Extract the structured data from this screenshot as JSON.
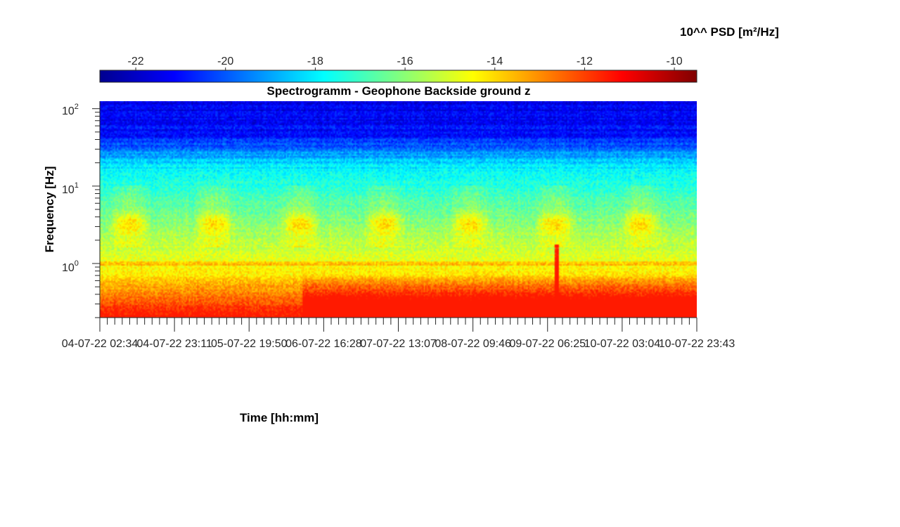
{
  "chart_data": {
    "type": "heatmap",
    "title": "Spectrogramm - Geophone Backside ground z",
    "xlabel": "Time [hh:mm]",
    "ylabel": "Frequency [Hz]",
    "x_tick_labels": [
      "04-07-22 02:34",
      "04-07-22 23:11",
      "05-07-22 19:50",
      "06-07-22 16:28",
      "07-07-22 13:07",
      "08-07-22 09:46",
      "09-07-22 06:25",
      "10-07-22 03:04",
      "10-07-22 23:43"
    ],
    "y_scale": "log",
    "y_ticks": [
      {
        "base": "10",
        "exp": "0",
        "value": 1
      },
      {
        "base": "10",
        "exp": "1",
        "value": 10
      },
      {
        "base": "10",
        "exp": "2",
        "value": 100
      }
    ],
    "ylim": [
      0.2,
      125
    ],
    "colorbar": {
      "label": "10^^ PSD [m²/Hz]",
      "ticks": [
        "-22",
        "-20",
        "-18",
        "-16",
        "-14",
        "-12",
        "-10"
      ],
      "range": [
        -22.8,
        -9.5
      ],
      "colormap": "jet"
    },
    "features": {
      "high_frequency_level": -21.5,
      "peak_low_frequency_level": -11.5,
      "spike_time": "09-07-22 07:30"
    }
  }
}
